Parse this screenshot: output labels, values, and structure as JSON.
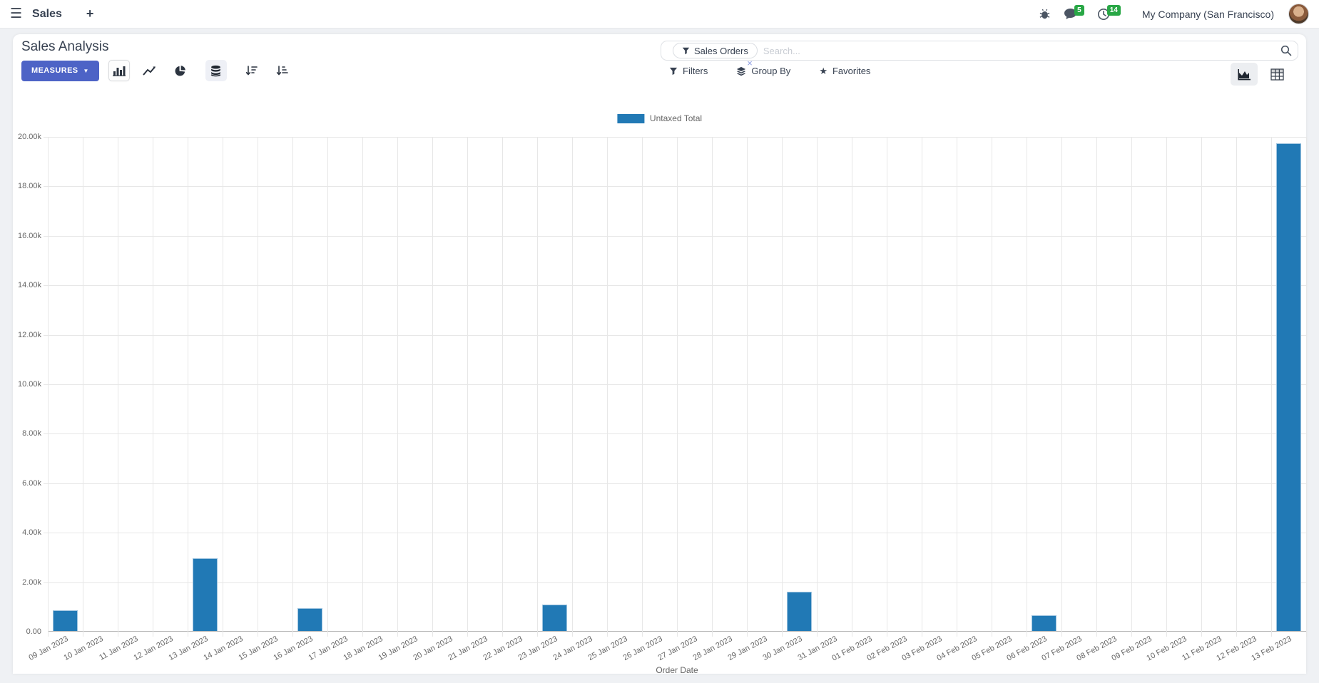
{
  "navbar": {
    "app_name": "Sales",
    "messages_badge": "5",
    "activities_badge": "14",
    "company": "My Company (San Francisco)"
  },
  "control_panel": {
    "title": "Sales Analysis",
    "measures_label": "MEASURES",
    "search": {
      "facet": "Sales Orders",
      "placeholder": "Search..."
    },
    "filters_label": "Filters",
    "group_by_label": "Group By",
    "favorites_label": "Favorites"
  },
  "icons": {
    "menu": "☰",
    "plus": "+",
    "caret_down": "▼",
    "close": "×",
    "star": "★"
  },
  "colors": {
    "accent": "#4d63c6",
    "bar": "#2179b5",
    "badge": "#28a745",
    "navbar_text": "#374151",
    "muted_text": "#666666"
  },
  "chart_data": {
    "type": "bar",
    "title": "",
    "xlabel": "Order Date",
    "ylabel": "",
    "ylim": [
      0,
      20000
    ],
    "grid": true,
    "legend_position": "top",
    "y_ticks": [
      "0.00",
      "2.00k",
      "4.00k",
      "6.00k",
      "8.00k",
      "10.00k",
      "12.00k",
      "14.00k",
      "16.00k",
      "18.00k",
      "20.00k"
    ],
    "categories": [
      "09 Jan 2023",
      "10 Jan 2023",
      "11 Jan 2023",
      "12 Jan 2023",
      "13 Jan 2023",
      "14 Jan 2023",
      "15 Jan 2023",
      "16 Jan 2023",
      "17 Jan 2023",
      "18 Jan 2023",
      "19 Jan 2023",
      "20 Jan 2023",
      "21 Jan 2023",
      "22 Jan 2023",
      "23 Jan 2023",
      "24 Jan 2023",
      "25 Jan 2023",
      "26 Jan 2023",
      "27 Jan 2023",
      "28 Jan 2023",
      "29 Jan 2023",
      "30 Jan 2023",
      "31 Jan 2023",
      "01 Feb 2023",
      "02 Feb 2023",
      "03 Feb 2023",
      "04 Feb 2023",
      "05 Feb 2023",
      "06 Feb 2023",
      "07 Feb 2023",
      "08 Feb 2023",
      "09 Feb 2023",
      "10 Feb 2023",
      "11 Feb 2023",
      "12 Feb 2023",
      "13 Feb 2023"
    ],
    "series": [
      {
        "name": "Untaxed Total",
        "color": "#2179b5",
        "values": [
          840,
          0,
          0,
          0,
          2950,
          0,
          0,
          930,
          0,
          0,
          0,
          0,
          0,
          0,
          1075,
          0,
          0,
          0,
          0,
          0,
          0,
          1580,
          0,
          0,
          0,
          0,
          0,
          0,
          630,
          0,
          0,
          0,
          0,
          0,
          0,
          19710
        ]
      }
    ]
  }
}
